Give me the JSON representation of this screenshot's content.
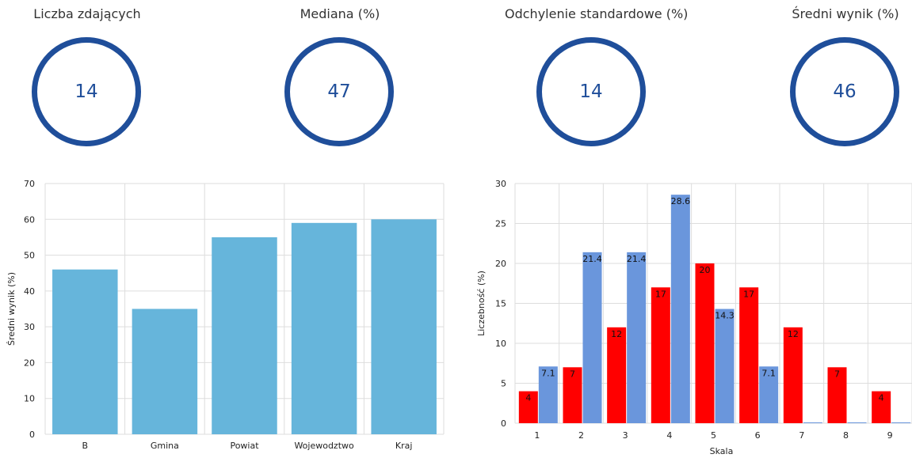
{
  "kpis": [
    {
      "title": "Liczba zdających",
      "value": "14"
    },
    {
      "title": "Mediana (%)",
      "value": "47"
    },
    {
      "title": "Odchylenie standardowe (%)",
      "value": "14"
    },
    {
      "title": "Średni wynik (%)",
      "value": "46"
    }
  ],
  "colors": {
    "ring": "#1f4e9a",
    "bar_light": "#66b5db",
    "bar_blue": "#6a96dc",
    "bar_red": "#ff0000",
    "grid": "#dddddd"
  },
  "chart_data": [
    {
      "type": "bar",
      "title": "",
      "xlabel": "",
      "ylabel": "Średni wynik (%)",
      "categories": [
        "B",
        "Gmina",
        "Powiat",
        "Wojewodztwo",
        "Kraj"
      ],
      "values": [
        46,
        35,
        55,
        59,
        60
      ],
      "ylim": [
        0,
        70
      ],
      "yticks": [
        0,
        10,
        20,
        30,
        40,
        50,
        60,
        70
      ],
      "grid": true
    },
    {
      "type": "bar",
      "title": "",
      "xlabel": "Skala",
      "ylabel": "Liczebność (%)",
      "categories": [
        "1",
        "2",
        "3",
        "4",
        "5",
        "6",
        "7",
        "8",
        "9"
      ],
      "series": [
        {
          "values": [
            4,
            7,
            12,
            17,
            20,
            17,
            12,
            7,
            4
          ],
          "labels": [
            "4",
            "7",
            "12",
            "17",
            "20",
            "17",
            "12",
            "7",
            "4"
          ]
        },
        {
          "values": [
            7.1,
            21.4,
            21.4,
            28.6,
            14.3,
            7.1,
            0,
            0,
            0
          ],
          "labels": [
            "7.1",
            "21.4",
            "21.4",
            "28.6",
            "14.3",
            "7.1",
            "",
            "",
            ""
          ]
        }
      ],
      "ylim": [
        0,
        30
      ],
      "yticks": [
        0,
        5,
        10,
        15,
        20,
        25,
        30
      ],
      "grid": true,
      "data_labels": true
    }
  ]
}
